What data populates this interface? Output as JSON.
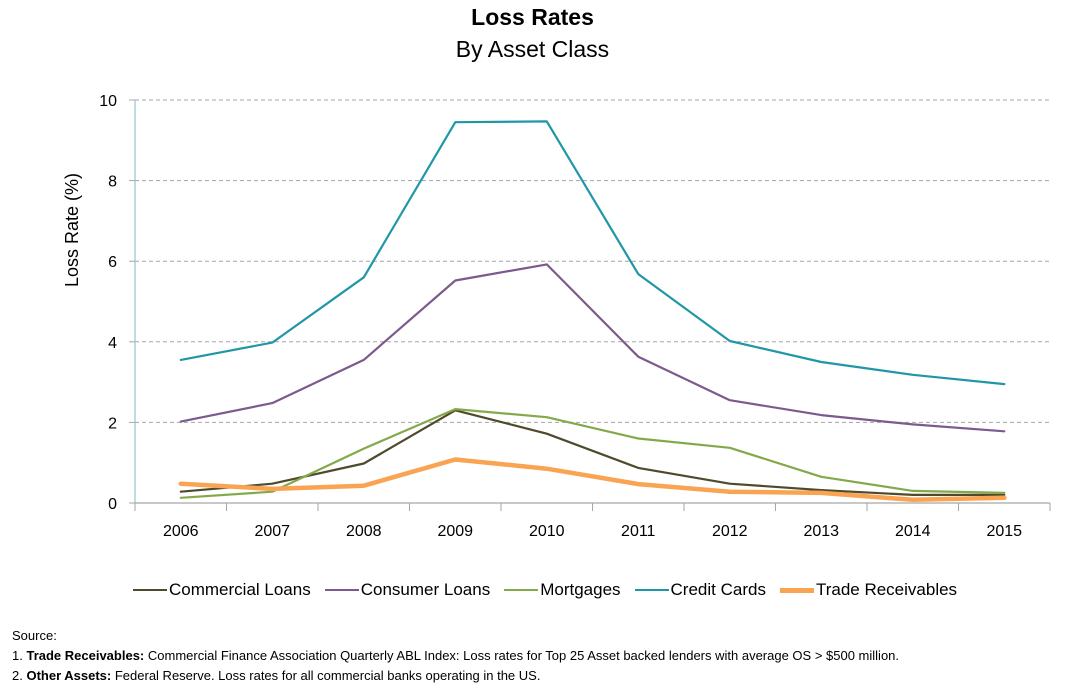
{
  "header": {
    "title": "Loss Rates",
    "subtitle": "By Asset Class"
  },
  "chart_data": {
    "type": "line",
    "title": "Loss Rates",
    "subtitle": "By Asset Class",
    "xlabel": "",
    "ylabel": "Loss Rate (%)",
    "ylim": [
      0,
      10
    ],
    "yticks": [
      "0",
      "2",
      "4",
      "6",
      "8",
      "10"
    ],
    "grid": "horizontal dashed",
    "legend_position": "bottom",
    "x": [
      "2006",
      "2007",
      "2008",
      "2009",
      "2010",
      "2011",
      "2012",
      "2013",
      "2014",
      "2015"
    ],
    "series": [
      {
        "name": "Commercial Loans",
        "color": "#4f4a2b",
        "values": [
          0.28,
          0.48,
          0.98,
          2.3,
          1.72,
          0.87,
          0.48,
          0.32,
          0.2,
          0.2
        ]
      },
      {
        "name": "Consumer Loans",
        "color": "#7b5a8e",
        "values": [
          2.02,
          2.48,
          3.55,
          5.52,
          5.92,
          3.63,
          2.55,
          2.18,
          1.95,
          1.78
        ]
      },
      {
        "name": "Mortgages",
        "color": "#84a94b",
        "values": [
          0.13,
          0.28,
          1.35,
          2.33,
          2.13,
          1.6,
          1.37,
          0.65,
          0.3,
          0.25
        ]
      },
      {
        "name": "Credit Cards",
        "color": "#1f97a6",
        "values": [
          3.55,
          3.98,
          5.6,
          9.45,
          9.47,
          5.68,
          4.02,
          3.5,
          3.18,
          2.95
        ]
      },
      {
        "name": "Trade Receivables",
        "color": "#f9a452",
        "values": [
          0.48,
          0.35,
          0.43,
          1.08,
          0.85,
          0.47,
          0.28,
          0.25,
          0.08,
          0.13
        ]
      }
    ]
  },
  "notes": {
    "source_label": "Source:",
    "note1_num": "1.",
    "note1_bold": "Trade Receivables:",
    "note1_text": " Commercial Finance Association Quarterly ABL Index:  Loss rates for Top 25 Asset backed lenders with average OS > $500 million.",
    "note2_num": "2.",
    "note2_bold": "Other Assets:",
    "note2_text": " Federal Reserve. Loss rates for all commercial banks operating in the US."
  }
}
